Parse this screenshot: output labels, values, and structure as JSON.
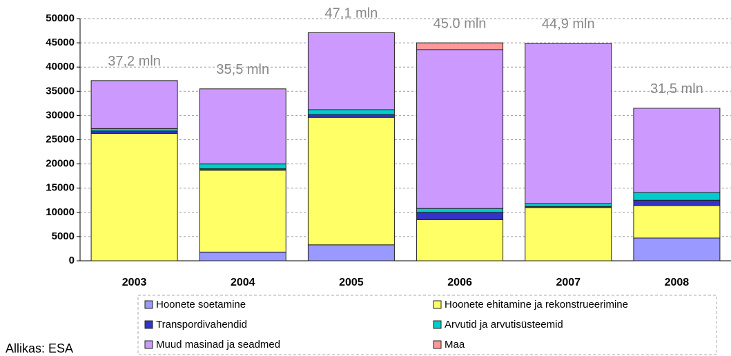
{
  "chart_data": {
    "type": "stacked_bar",
    "categories": [
      "2003",
      "2004",
      "2005",
      "2006",
      "2007",
      "2008"
    ],
    "series": [
      {
        "name": "Hoonete soetamine",
        "color": "#9999ff",
        "values": [
          0,
          1800,
          3300,
          0,
          0,
          4700
        ]
      },
      {
        "name": "Hoonete ehitamine ja rekonstrueerimine",
        "color": "#ffff66",
        "values": [
          26300,
          16900,
          26300,
          8500,
          11000,
          6700
        ]
      },
      {
        "name": "Transpordivahendid",
        "color": "#3333cc",
        "values": [
          500,
          300,
          600,
          1500,
          200,
          1100
        ]
      },
      {
        "name": "Arvutid ja arvutisüsteemid",
        "color": "#00cccc",
        "values": [
          500,
          1000,
          1000,
          800,
          600,
          1600
        ]
      },
      {
        "name": "Muud masinad ja seadmed",
        "color": "#cc99ff",
        "values": [
          9900,
          15500,
          15900,
          32800,
          33100,
          17400
        ]
      },
      {
        "name": "Maa",
        "color": "#ff9999",
        "values": [
          0,
          0,
          0,
          1400,
          0,
          0
        ]
      }
    ],
    "annotations": [
      "37,2 mln",
      "35,5 mln",
      "47,1 mln",
      "45.0 mln",
      "44,9 mln",
      "31,5 mln"
    ],
    "source": "Allikas: ESA",
    "ylim": [
      0,
      50000
    ],
    "yticks": [
      0,
      5000,
      10000,
      15000,
      20000,
      25000,
      30000,
      35000,
      40000,
      45000,
      50000
    ],
    "grid": true
  }
}
